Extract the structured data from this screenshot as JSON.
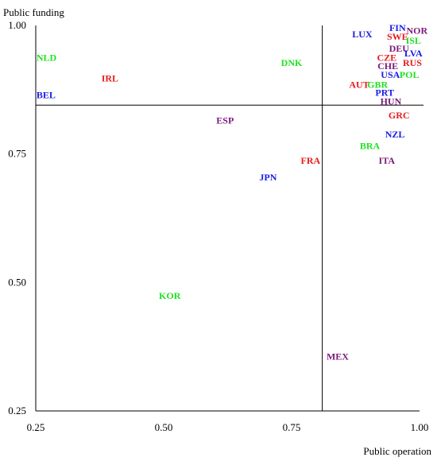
{
  "chart_data": {
    "type": "scatter",
    "xlabel": "Public operation",
    "ylabel": "Public funding",
    "xlim": [
      0.25,
      1.0
    ],
    "ylim": [
      0.25,
      1.0
    ],
    "xticks": [
      "0.25",
      "0.50",
      "0.75",
      "1.00"
    ],
    "yticks": [
      "0.25",
      "0.50",
      "0.75",
      "1.00"
    ],
    "reference_lines": {
      "x": 0.81,
      "y": 0.845
    },
    "colors": {
      "green": "#22e022",
      "red": "#e81c1c",
      "blue": "#1a1ae6",
      "purple": "#7a1a7a"
    },
    "points": [
      {
        "label": "FIN",
        "x": 0.957,
        "y": 0.995,
        "color": "blue"
      },
      {
        "label": "NOR",
        "x": 0.995,
        "y": 0.99,
        "color": "purple"
      },
      {
        "label": "LUX",
        "x": 0.888,
        "y": 0.983,
        "color": "blue"
      },
      {
        "label": "SWE",
        "x": 0.957,
        "y": 0.978,
        "color": "red"
      },
      {
        "label": "ISL",
        "x": 0.988,
        "y": 0.971,
        "color": "green"
      },
      {
        "label": "DEU",
        "x": 0.96,
        "y": 0.955,
        "color": "purple"
      },
      {
        "label": "LVA",
        "x": 0.988,
        "y": 0.946,
        "color": "blue"
      },
      {
        "label": "NLD",
        "x": 0.271,
        "y": 0.937,
        "color": "green"
      },
      {
        "label": "CZE",
        "x": 0.936,
        "y": 0.937,
        "color": "red"
      },
      {
        "label": "DNK",
        "x": 0.75,
        "y": 0.927,
        "color": "green"
      },
      {
        "label": "RUS",
        "x": 0.986,
        "y": 0.927,
        "color": "red"
      },
      {
        "label": "CHE",
        "x": 0.938,
        "y": 0.921,
        "color": "purple"
      },
      {
        "label": "USA",
        "x": 0.943,
        "y": 0.904,
        "color": "blue"
      },
      {
        "label": "POL",
        "x": 0.98,
        "y": 0.904,
        "color": "green"
      },
      {
        "label": "IRL",
        "x": 0.395,
        "y": 0.897,
        "color": "red"
      },
      {
        "label": "AUT",
        "x": 0.882,
        "y": 0.885,
        "color": "red"
      },
      {
        "label": "GBR",
        "x": 0.918,
        "y": 0.885,
        "color": "green"
      },
      {
        "label": "BEL",
        "x": 0.27,
        "y": 0.865,
        "color": "blue"
      },
      {
        "label": "PRT",
        "x": 0.932,
        "y": 0.869,
        "color": "blue"
      },
      {
        "label": "HUN",
        "x": 0.944,
        "y": 0.852,
        "color": "purple"
      },
      {
        "label": "GRC",
        "x": 0.96,
        "y": 0.825,
        "color": "red"
      },
      {
        "label": "ESP",
        "x": 0.62,
        "y": 0.815,
        "color": "purple"
      },
      {
        "label": "NZL",
        "x": 0.952,
        "y": 0.788,
        "color": "blue"
      },
      {
        "label": "BRA",
        "x": 0.903,
        "y": 0.766,
        "color": "green"
      },
      {
        "label": "FRA",
        "x": 0.787,
        "y": 0.737,
        "color": "red"
      },
      {
        "label": "ITA",
        "x": 0.936,
        "y": 0.737,
        "color": "purple"
      },
      {
        "label": "JPN",
        "x": 0.704,
        "y": 0.705,
        "color": "blue"
      },
      {
        "label": "KOR",
        "x": 0.512,
        "y": 0.474,
        "color": "green"
      },
      {
        "label": "MEX",
        "x": 0.84,
        "y": 0.356,
        "color": "purple"
      }
    ]
  }
}
